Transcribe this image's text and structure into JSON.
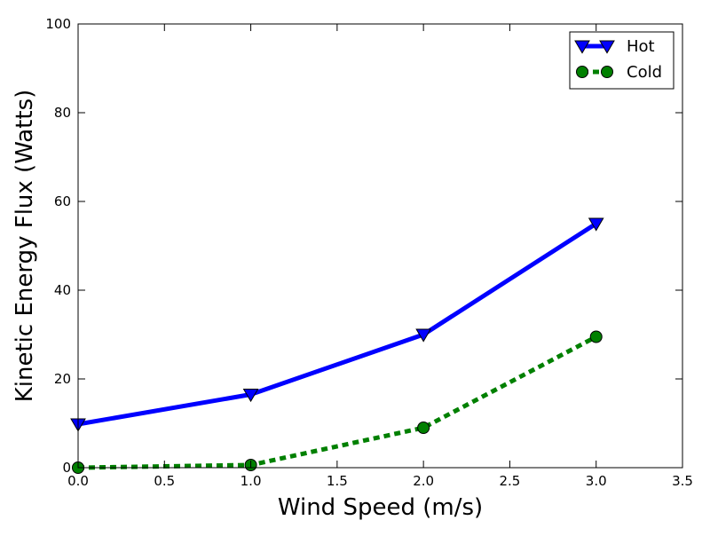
{
  "chart_data": {
    "type": "line",
    "title": "",
    "xlabel": "Wind Speed (m/s)",
    "ylabel": "Kinetic Energy Flux (Watts)",
    "xlim": [
      0,
      3.5
    ],
    "ylim": [
      0,
      100
    ],
    "xticks": [
      "0.0",
      "0.5",
      "1.0",
      "1.5",
      "2.0",
      "2.5",
      "3.0",
      "3.5"
    ],
    "yticks": [
      "0",
      "20",
      "40",
      "60",
      "80",
      "100"
    ],
    "grid": false,
    "legend_position": "top-right",
    "series": [
      {
        "name": "Hot",
        "x": [
          0,
          1,
          2,
          3
        ],
        "y": [
          9.8,
          16.5,
          30.0,
          55.0
        ],
        "color": "#0000ff",
        "line_style": "solid",
        "marker": "triangle-down"
      },
      {
        "name": "Cold",
        "x": [
          0,
          1,
          2,
          3
        ],
        "y": [
          0.0,
          0.6,
          9.0,
          29.5
        ],
        "color": "#008000",
        "line_style": "dotted",
        "marker": "circle"
      }
    ]
  }
}
